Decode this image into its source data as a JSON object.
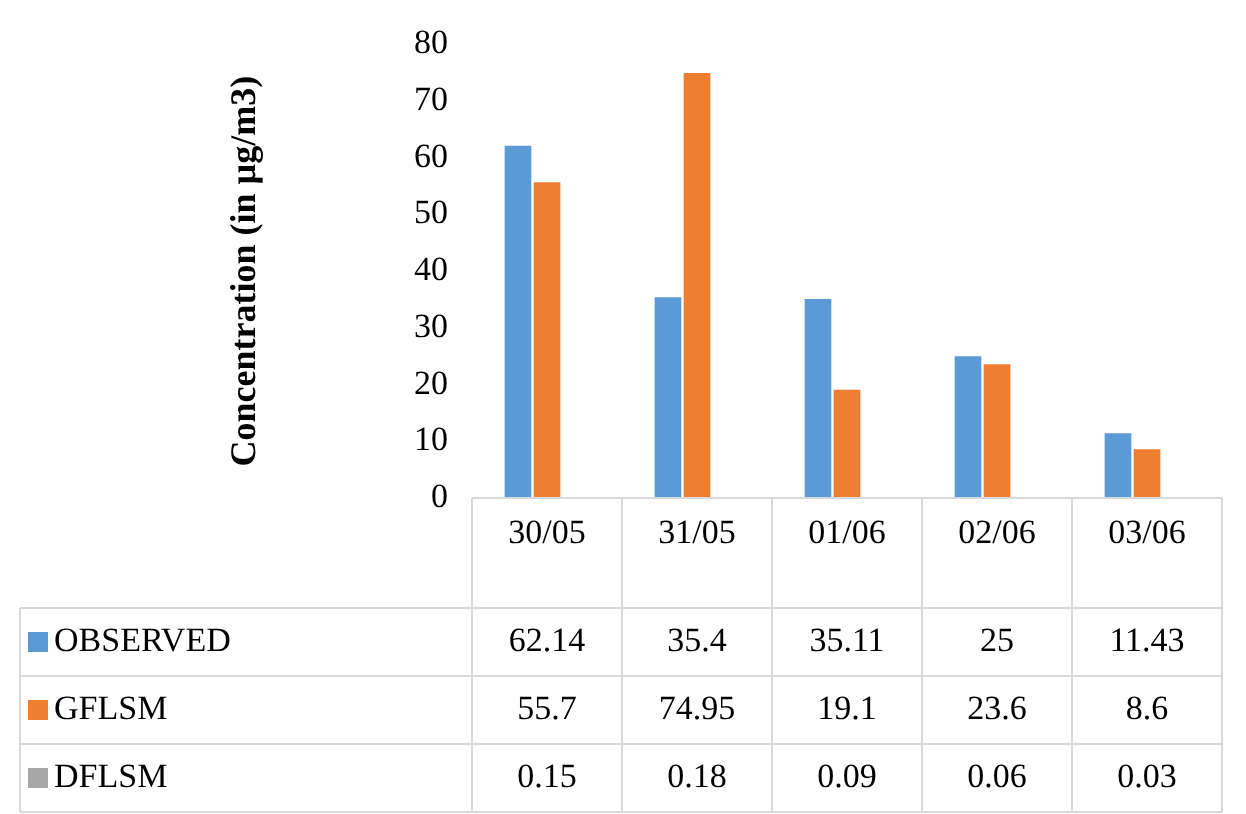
{
  "chart_data": {
    "type": "bar",
    "ylabel": "Concentration (in µg/m3)",
    "categories": [
      "30/05",
      "31/05",
      "01/06",
      "02/06",
      "03/06"
    ],
    "series": [
      {
        "name": "OBSERVED",
        "color": "#5b9bd5",
        "values": [
          62.14,
          35.4,
          35.11,
          25,
          11.43
        ]
      },
      {
        "name": "GFLSM",
        "color": "#ed7d31",
        "values": [
          55.7,
          74.95,
          19.1,
          23.6,
          8.6
        ]
      },
      {
        "name": "DFLSM",
        "color": "#a5a5a5",
        "values": [
          0.15,
          0.18,
          0.09,
          0.06,
          0.03
        ]
      }
    ],
    "ylim": [
      0,
      80
    ],
    "yticks": [
      0,
      10,
      20,
      30,
      40,
      50,
      60,
      70,
      80
    ],
    "grid": false,
    "legend": "bottom left",
    "data_labels": true
  }
}
